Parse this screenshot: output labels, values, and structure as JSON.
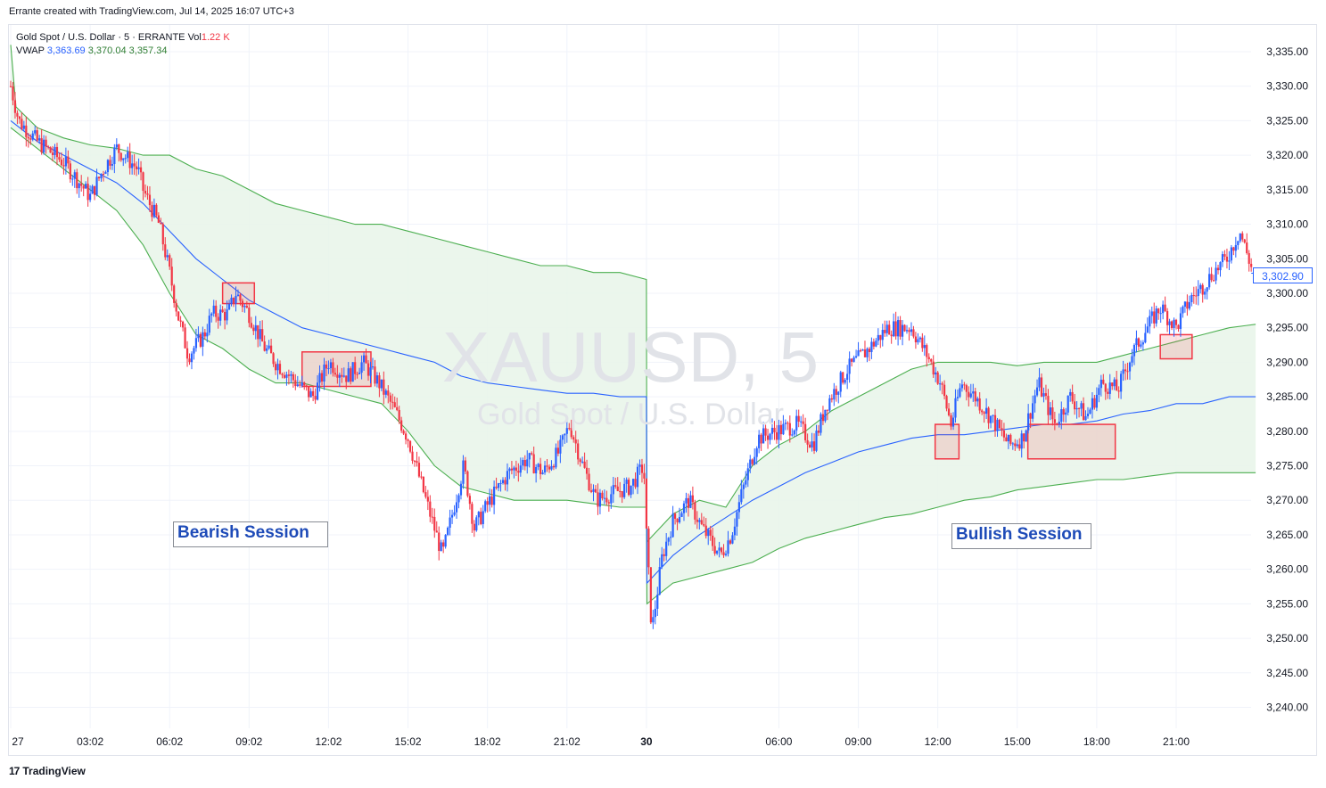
{
  "header": {
    "caption": "Errante created with TradingView.com, Jul 14, 2025 16:07 UTC+3"
  },
  "legend": {
    "symbol_line": "Gold Spot / U.S. Dollar · 5 · ERRANTE",
    "vol_label": "Vol",
    "vol_value": "1.22 K",
    "vwap_label": "VWAP",
    "vwap_value": "3,363.69",
    "upper_value": "3,370.04",
    "lower_value": "3,357.34"
  },
  "watermark": {
    "symbol": "XAUUSD, 5",
    "name": "Gold Spot / U.S. Dollar"
  },
  "annotations": {
    "bearish": "Bearish Session",
    "bullish": "Bullish Session"
  },
  "last_price": "3,302.90",
  "footer": {
    "brand": "TradingView",
    "logo": "17"
  },
  "colors": {
    "up": "#2962ff",
    "down": "#f23645",
    "vwap": "#2962ff",
    "band": "#4caf50",
    "band_fill": "#e8f5e9",
    "box": "#f23645"
  },
  "chart_data": {
    "type": "candlestick",
    "symbol": "XAUUSD",
    "timeframe": "5",
    "ylim": [
      3236,
      3340
    ],
    "y_ticks": [
      "3,335.00",
      "3,330.00",
      "3,325.00",
      "3,320.00",
      "3,315.00",
      "3,310.00",
      "3,305.00",
      "3,300.00",
      "3,295.00",
      "3,290.00",
      "3,285.00",
      "3,280.00",
      "3,275.00",
      "3,270.00",
      "3,265.00",
      "3,260.00",
      "3,255.00",
      "3,250.00",
      "3,245.00",
      "3,240.00"
    ],
    "y_tick_values": [
      3335,
      3330,
      3325,
      3320,
      3315,
      3310,
      3305,
      3300,
      3295,
      3290,
      3285,
      3280,
      3275,
      3270,
      3265,
      3260,
      3255,
      3250,
      3245,
      3240
    ],
    "x_ticks": [
      {
        "label": "27",
        "t": 0,
        "bold": false
      },
      {
        "label": "03:02",
        "t": 3,
        "bold": false
      },
      {
        "label": "06:02",
        "t": 6,
        "bold": false
      },
      {
        "label": "09:02",
        "t": 9,
        "bold": false
      },
      {
        "label": "12:02",
        "t": 12,
        "bold": false
      },
      {
        "label": "15:02",
        "t": 15,
        "bold": false
      },
      {
        "label": "18:02",
        "t": 18,
        "bold": false
      },
      {
        "label": "21:02",
        "t": 21,
        "bold": false
      },
      {
        "label": "30",
        "t": 24,
        "bold": true
      },
      {
        "label": "06:00",
        "t": 29,
        "bold": false
      },
      {
        "label": "09:00",
        "t": 32,
        "bold": false
      },
      {
        "label": "12:00",
        "t": 35,
        "bold": false
      },
      {
        "label": "15:00",
        "t": 38,
        "bold": false
      },
      {
        "label": "18:00",
        "t": 41,
        "bold": false
      },
      {
        "label": "21:00",
        "t": 44,
        "bold": false
      }
    ],
    "price_path": [
      [
        0,
        3330
      ],
      [
        0.3,
        3325
      ],
      [
        1,
        3322
      ],
      [
        2,
        3319
      ],
      [
        3,
        3314
      ],
      [
        3.5,
        3318
      ],
      [
        4,
        3321
      ],
      [
        4.8,
        3318
      ],
      [
        5,
        3315
      ],
      [
        5.6,
        3310
      ],
      [
        6,
        3303
      ],
      [
        6.3,
        3297
      ],
      [
        6.7,
        3291
      ],
      [
        7.3,
        3294
      ],
      [
        7.6,
        3297
      ],
      [
        8.2,
        3297
      ],
      [
        8.5,
        3300
      ],
      [
        9,
        3297
      ],
      [
        9.6,
        3292
      ],
      [
        10,
        3290
      ],
      [
        10.8,
        3287
      ],
      [
        11.4,
        3285
      ],
      [
        12,
        3290
      ],
      [
        12.7,
        3288
      ],
      [
        13.3,
        3290
      ],
      [
        13.9,
        3287
      ],
      [
        14.5,
        3283
      ],
      [
        15,
        3279
      ],
      [
        15.6,
        3271
      ],
      [
        16.3,
        3262
      ],
      [
        17.1,
        3275
      ],
      [
        17.5,
        3266
      ],
      [
        18.1,
        3270
      ],
      [
        18.8,
        3274
      ],
      [
        19.5,
        3276
      ],
      [
        20.1,
        3274
      ],
      [
        20.7,
        3277
      ],
      [
        21.1,
        3281
      ],
      [
        21.6,
        3275
      ],
      [
        22.1,
        3270
      ],
      [
        22.7,
        3271
      ],
      [
        23.4,
        3272
      ],
      [
        23.9,
        3275
      ],
      [
        24,
        3265
      ],
      [
        24.2,
        3251
      ],
      [
        24.6,
        3262
      ],
      [
        25,
        3267
      ],
      [
        25.6,
        3270
      ],
      [
        26.1,
        3266
      ],
      [
        26.8,
        3262
      ],
      [
        27.2,
        3265
      ],
      [
        27.6,
        3271
      ],
      [
        28.2,
        3279
      ],
      [
        28.9,
        3280
      ],
      [
        29.7,
        3281
      ],
      [
        30.3,
        3278
      ],
      [
        30.8,
        3284
      ],
      [
        31.6,
        3289
      ],
      [
        32.4,
        3292
      ],
      [
        33.1,
        3295
      ],
      [
        34,
        3295
      ],
      [
        34.6,
        3291
      ],
      [
        35.1,
        3287
      ],
      [
        35.5,
        3281
      ],
      [
        35.9,
        3287
      ],
      [
        36.4,
        3285
      ],
      [
        37,
        3282
      ],
      [
        37.7,
        3278
      ],
      [
        38.2,
        3279
      ],
      [
        38.8,
        3287
      ],
      [
        39.4,
        3281
      ],
      [
        40,
        3285
      ],
      [
        40.6,
        3282
      ],
      [
        41.2,
        3287
      ],
      [
        41.8,
        3286
      ],
      [
        42.3,
        3291
      ],
      [
        42.9,
        3295
      ],
      [
        43.4,
        3298
      ],
      [
        44,
        3295
      ],
      [
        44.5,
        3299
      ],
      [
        45,
        3301
      ],
      [
        45.4,
        3303
      ],
      [
        45.9,
        3305
      ],
      [
        46.4,
        3309
      ],
      [
        46.9,
        3303
      ]
    ],
    "vwap": [
      [
        0,
        3325
      ],
      [
        1,
        3322
      ],
      [
        2,
        3320
      ],
      [
        3,
        3318
      ],
      [
        4,
        3316
      ],
      [
        5,
        3313
      ],
      [
        6,
        3309
      ],
      [
        7,
        3305
      ],
      [
        8,
        3302
      ],
      [
        9,
        3299
      ],
      [
        10,
        3297
      ],
      [
        11,
        3295
      ],
      [
        12,
        3294
      ],
      [
        13,
        3293
      ],
      [
        14,
        3292
      ],
      [
        15,
        3291
      ],
      [
        16,
        3290
      ],
      [
        17,
        3288
      ],
      [
        18,
        3287
      ],
      [
        19,
        3286.5
      ],
      [
        20,
        3286
      ],
      [
        21,
        3285.5
      ],
      [
        22,
        3285.5
      ],
      [
        23,
        3285
      ],
      [
        24,
        3285
      ],
      [
        24.02,
        3258
      ],
      [
        25,
        3262
      ],
      [
        26,
        3265
      ],
      [
        27,
        3267.5
      ],
      [
        28,
        3270
      ],
      [
        29,
        3272
      ],
      [
        30,
        3274
      ],
      [
        31,
        3275.5
      ],
      [
        32,
        3277
      ],
      [
        33,
        3278
      ],
      [
        34,
        3279
      ],
      [
        35,
        3279.5
      ],
      [
        36,
        3279.5
      ],
      [
        37,
        3280
      ],
      [
        38,
        3280.5
      ],
      [
        39,
        3281
      ],
      [
        40,
        3281
      ],
      [
        41,
        3281.5
      ],
      [
        42,
        3282.5
      ],
      [
        43,
        3283
      ],
      [
        44,
        3284
      ],
      [
        45,
        3284
      ],
      [
        46,
        3285
      ],
      [
        47,
        3285
      ]
    ],
    "upper_band": [
      [
        0,
        3336
      ],
      [
        0.2,
        3327
      ],
      [
        1,
        3324
      ],
      [
        2,
        3322.5
      ],
      [
        3,
        3321.5
      ],
      [
        4,
        3321
      ],
      [
        5,
        3320
      ],
      [
        6,
        3320
      ],
      [
        7,
        3318
      ],
      [
        8,
        3317
      ],
      [
        9,
        3315
      ],
      [
        10,
        3313
      ],
      [
        11,
        3312
      ],
      [
        12,
        3311
      ],
      [
        13,
        3310
      ],
      [
        14,
        3310
      ],
      [
        15,
        3309
      ],
      [
        16,
        3308
      ],
      [
        17,
        3307
      ],
      [
        18,
        3306
      ],
      [
        19,
        3305
      ],
      [
        20,
        3304
      ],
      [
        21,
        3304
      ],
      [
        22,
        3303
      ],
      [
        23,
        3303
      ],
      [
        24,
        3302
      ],
      [
        24.02,
        3264
      ],
      [
        25,
        3268
      ],
      [
        26,
        3270
      ],
      [
        27,
        3269
      ],
      [
        28,
        3275
      ],
      [
        29,
        3278
      ],
      [
        30,
        3280
      ],
      [
        31,
        3283
      ],
      [
        32,
        3285
      ],
      [
        33,
        3287
      ],
      [
        34,
        3289
      ],
      [
        35,
        3290
      ],
      [
        36,
        3290
      ],
      [
        37,
        3290
      ],
      [
        38,
        3289.5
      ],
      [
        39,
        3290
      ],
      [
        40,
        3290
      ],
      [
        41,
        3290
      ],
      [
        42,
        3291
      ],
      [
        43,
        3292
      ],
      [
        44,
        3293
      ],
      [
        45,
        3294
      ],
      [
        46,
        3295
      ],
      [
        47,
        3295.5
      ]
    ],
    "lower_band": [
      [
        0,
        3324
      ],
      [
        1,
        3321
      ],
      [
        2,
        3318
      ],
      [
        3,
        3315
      ],
      [
        4,
        3312
      ],
      [
        5,
        3307
      ],
      [
        6,
        3300
      ],
      [
        7,
        3294
      ],
      [
        8,
        3292
      ],
      [
        9,
        3289
      ],
      [
        10,
        3287
      ],
      [
        11,
        3287
      ],
      [
        12,
        3286
      ],
      [
        13,
        3285
      ],
      [
        14,
        3284
      ],
      [
        15,
        3280
      ],
      [
        16,
        3275
      ],
      [
        17,
        3272
      ],
      [
        18,
        3271
      ],
      [
        19,
        3270
      ],
      [
        20,
        3270
      ],
      [
        21,
        3270
      ],
      [
        22,
        3269.5
      ],
      [
        23,
        3269
      ],
      [
        24,
        3269
      ],
      [
        24.02,
        3255
      ],
      [
        25,
        3258
      ],
      [
        26,
        3259
      ],
      [
        27,
        3260
      ],
      [
        28,
        3261
      ],
      [
        29,
        3263
      ],
      [
        30,
        3264.5
      ],
      [
        31,
        3265.5
      ],
      [
        32,
        3266.5
      ],
      [
        33,
        3267.5
      ],
      [
        34,
        3268
      ],
      [
        35,
        3269
      ],
      [
        36,
        3270
      ],
      [
        37,
        3270.5
      ],
      [
        38,
        3271.5
      ],
      [
        39,
        3272
      ],
      [
        40,
        3272.5
      ],
      [
        41,
        3273
      ],
      [
        42,
        3273
      ],
      [
        43,
        3273.5
      ],
      [
        44,
        3274
      ],
      [
        45,
        3274
      ],
      [
        46,
        3274
      ],
      [
        47,
        3274
      ]
    ],
    "highlight_boxes": [
      {
        "t0": 8.0,
        "t1": 9.2,
        "y0": 3301.5,
        "y1": 3298.5
      },
      {
        "t0": 11.0,
        "t1": 13.6,
        "y0": 3291.5,
        "y1": 3286.5
      },
      {
        "t0": 34.9,
        "t1": 35.8,
        "y0": 3281,
        "y1": 3276
      },
      {
        "t0": 38.4,
        "t1": 41.7,
        "y0": 3281,
        "y1": 3276
      },
      {
        "t0": 43.4,
        "t1": 44.6,
        "y0": 3294,
        "y1": 3290.5
      }
    ]
  }
}
